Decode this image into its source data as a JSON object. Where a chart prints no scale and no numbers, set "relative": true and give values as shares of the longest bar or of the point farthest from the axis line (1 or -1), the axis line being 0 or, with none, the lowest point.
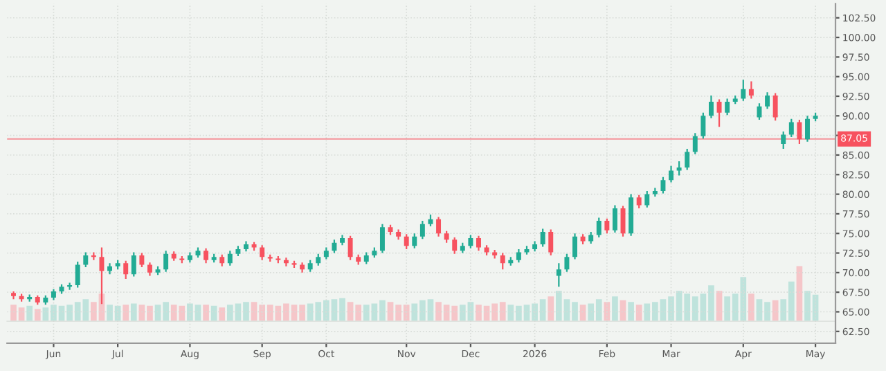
{
  "chart_data": [
    {
      "type": "candlestick",
      "categories": [
        null,
        null,
        null,
        null,
        null,
        "Jun",
        null,
        null,
        null,
        null,
        null,
        null,
        null,
        "Jul",
        null,
        null,
        null,
        null,
        null,
        null,
        null,
        null,
        "Aug",
        null,
        null,
        null,
        null,
        null,
        null,
        null,
        null,
        "Sep",
        null,
        null,
        null,
        null,
        null,
        null,
        null,
        "Oct",
        null,
        null,
        null,
        null,
        null,
        null,
        null,
        null,
        null,
        "Nov",
        null,
        null,
        null,
        null,
        null,
        null,
        null,
        "Dec",
        null,
        null,
        null,
        null,
        null,
        null,
        null,
        "2026",
        null,
        null,
        null,
        null,
        null,
        null,
        null,
        null,
        "Feb",
        null,
        null,
        null,
        null,
        null,
        null,
        null,
        "Mar",
        null,
        null,
        null,
        null,
        null,
        null,
        null,
        null,
        "Apr",
        null,
        null,
        null,
        null,
        null,
        null,
        null,
        null,
        "May"
      ],
      "ohlc": [
        [
          67.4,
          67.6,
          66.6,
          67.0
        ],
        [
          67.0,
          67.3,
          66.3,
          66.6
        ],
        [
          66.6,
          67.2,
          66.3,
          66.9
        ],
        [
          66.9,
          67.1,
          65.9,
          66.2
        ],
        [
          66.2,
          67.1,
          65.9,
          66.8
        ],
        [
          66.8,
          67.9,
          66.5,
          67.6
        ],
        [
          67.6,
          68.5,
          67.3,
          68.2
        ],
        [
          68.2,
          68.7,
          67.8,
          68.4
        ],
        [
          68.4,
          71.4,
          68.1,
          71.0
        ],
        [
          71.0,
          72.6,
          70.7,
          72.2
        ],
        [
          72.2,
          72.6,
          71.6,
          72.0
        ],
        [
          72.0,
          73.2,
          66.0,
          70.2
        ],
        [
          70.2,
          71.2,
          69.8,
          70.8
        ],
        [
          70.8,
          71.6,
          70.4,
          71.2
        ],
        [
          71.2,
          71.5,
          69.2,
          69.8
        ],
        [
          69.8,
          72.6,
          69.5,
          72.2
        ],
        [
          72.2,
          72.5,
          70.7,
          71.0
        ],
        [
          71.0,
          71.3,
          69.6,
          70.0
        ],
        [
          70.0,
          70.8,
          69.7,
          70.4
        ],
        [
          70.4,
          72.8,
          70.1,
          72.4
        ],
        [
          72.4,
          72.7,
          71.5,
          71.8
        ],
        [
          71.8,
          72.1,
          71.2,
          71.6
        ],
        [
          71.6,
          72.6,
          71.3,
          72.2
        ],
        [
          72.2,
          73.2,
          71.9,
          72.8
        ],
        [
          72.8,
          73.1,
          71.2,
          71.6
        ],
        [
          71.6,
          72.4,
          71.3,
          72.0
        ],
        [
          72.0,
          72.3,
          70.8,
          71.2
        ],
        [
          71.2,
          72.8,
          70.9,
          72.4
        ],
        [
          72.4,
          73.4,
          72.1,
          73.0
        ],
        [
          73.0,
          74.0,
          72.7,
          73.6
        ],
        [
          73.6,
          73.9,
          72.8,
          73.2
        ],
        [
          73.2,
          73.5,
          71.6,
          72.0
        ],
        [
          72.0,
          72.3,
          71.4,
          71.8
        ],
        [
          71.8,
          72.1,
          71.2,
          71.6
        ],
        [
          71.6,
          71.9,
          70.8,
          71.2
        ],
        [
          71.2,
          71.5,
          70.6,
          71.0
        ],
        [
          71.0,
          71.3,
          70.0,
          70.4
        ],
        [
          70.4,
          71.6,
          70.1,
          71.2
        ],
        [
          71.2,
          72.4,
          70.9,
          72.0
        ],
        [
          72.0,
          73.2,
          71.7,
          72.8
        ],
        [
          72.8,
          74.2,
          72.5,
          73.8
        ],
        [
          73.8,
          74.8,
          73.5,
          74.4
        ],
        [
          74.4,
          74.7,
          71.6,
          72.0
        ],
        [
          72.0,
          72.3,
          71.0,
          71.4
        ],
        [
          71.4,
          72.6,
          71.1,
          72.2
        ],
        [
          72.2,
          73.2,
          71.9,
          72.8
        ],
        [
          72.8,
          76.2,
          72.5,
          75.8
        ],
        [
          75.8,
          76.1,
          74.8,
          75.2
        ],
        [
          75.2,
          75.5,
          74.2,
          74.6
        ],
        [
          74.6,
          74.9,
          73.0,
          73.4
        ],
        [
          73.4,
          75.0,
          73.1,
          74.6
        ],
        [
          74.6,
          76.6,
          74.3,
          76.2
        ],
        [
          76.2,
          77.4,
          75.9,
          76.8
        ],
        [
          76.8,
          77.1,
          74.6,
          75.0
        ],
        [
          75.0,
          75.3,
          73.8,
          74.2
        ],
        [
          74.2,
          74.5,
          72.4,
          72.8
        ],
        [
          72.8,
          73.8,
          72.5,
          73.4
        ],
        [
          73.4,
          74.8,
          73.1,
          74.4
        ],
        [
          74.4,
          74.7,
          72.8,
          73.2
        ],
        [
          73.2,
          73.5,
          72.2,
          72.6
        ],
        [
          72.6,
          72.9,
          71.8,
          72.2
        ],
        [
          72.2,
          72.5,
          70.4,
          71.2
        ],
        [
          71.2,
          72.0,
          70.9,
          71.6
        ],
        [
          71.6,
          73.0,
          71.3,
          72.6
        ],
        [
          72.6,
          73.4,
          72.3,
          73.0
        ],
        [
          73.0,
          74.0,
          72.7,
          73.6
        ],
        [
          73.6,
          75.6,
          73.3,
          75.2
        ],
        [
          75.2,
          75.5,
          72.2,
          72.6
        ],
        [
          69.6,
          71.2,
          68.2,
          70.4
        ],
        [
          70.4,
          72.4,
          70.1,
          72.0
        ],
        [
          72.0,
          75.0,
          71.7,
          74.6
        ],
        [
          74.6,
          74.9,
          73.6,
          74.0
        ],
        [
          74.0,
          75.2,
          73.7,
          74.8
        ],
        [
          74.8,
          77.0,
          74.5,
          76.6
        ],
        [
          76.6,
          76.9,
          75.0,
          75.4
        ],
        [
          75.4,
          78.6,
          75.1,
          78.2
        ],
        [
          78.2,
          78.5,
          74.6,
          75.0
        ],
        [
          75.0,
          80.0,
          74.7,
          79.6
        ],
        [
          79.6,
          79.9,
          78.2,
          78.6
        ],
        [
          78.6,
          80.4,
          78.3,
          80.0
        ],
        [
          80.0,
          80.8,
          79.7,
          80.4
        ],
        [
          80.4,
          82.2,
          80.1,
          81.8
        ],
        [
          81.8,
          83.6,
          81.5,
          83.0
        ],
        [
          83.0,
          84.2,
          82.4,
          83.4
        ],
        [
          83.4,
          85.8,
          83.1,
          85.4
        ],
        [
          85.4,
          87.8,
          85.1,
          87.4
        ],
        [
          87.4,
          90.4,
          87.1,
          90.0
        ],
        [
          90.0,
          92.6,
          89.7,
          91.8
        ],
        [
          91.8,
          92.1,
          88.6,
          90.4
        ],
        [
          90.4,
          92.2,
          90.1,
          91.8
        ],
        [
          91.8,
          92.6,
          91.5,
          92.2
        ],
        [
          92.2,
          94.6,
          91.9,
          93.4
        ],
        [
          93.4,
          94.4,
          92.2,
          92.6
        ],
        [
          89.8,
          91.6,
          89.5,
          91.2
        ],
        [
          91.2,
          93.0,
          90.9,
          92.6
        ],
        [
          92.6,
          92.9,
          89.4,
          89.8
        ],
        [
          86.4,
          88.0,
          85.8,
          87.6
        ],
        [
          87.6,
          89.6,
          87.3,
          89.2
        ],
        [
          89.2,
          89.5,
          86.4,
          87.0
        ],
        [
          87.0,
          90.0,
          86.7,
          89.6
        ],
        [
          89.6,
          90.4,
          89.3,
          90.0
        ]
      ],
      "colors": [
        "#f7525f",
        "#f7525f",
        "#22ab94",
        "#f7525f",
        "#22ab94",
        "#22ab94",
        "#22ab94",
        "#22ab94",
        "#22ab94",
        "#22ab94",
        "#f7525f",
        "#f7525f",
        "#22ab94",
        "#22ab94",
        "#f7525f",
        "#22ab94",
        "#f7525f",
        "#f7525f",
        "#22ab94",
        "#22ab94",
        "#f7525f",
        "#f7525f",
        "#22ab94",
        "#22ab94",
        "#f7525f",
        "#22ab94",
        "#f7525f",
        "#22ab94",
        "#22ab94",
        "#22ab94",
        "#f7525f",
        "#f7525f",
        "#f7525f",
        "#f7525f",
        "#f7525f",
        "#f7525f",
        "#f7525f",
        "#22ab94",
        "#22ab94",
        "#22ab94",
        "#22ab94",
        "#22ab94",
        "#f7525f",
        "#f7525f",
        "#22ab94",
        "#22ab94",
        "#22ab94",
        "#f7525f",
        "#f7525f",
        "#f7525f",
        "#22ab94",
        "#22ab94",
        "#22ab94",
        "#f7525f",
        "#f7525f",
        "#f7525f",
        "#22ab94",
        "#22ab94",
        "#f7525f",
        "#f7525f",
        "#f7525f",
        "#f7525f",
        "#22ab94",
        "#22ab94",
        "#22ab94",
        "#22ab94",
        "#22ab94",
        "#f7525f",
        "#22ab94",
        "#22ab94",
        "#22ab94",
        "#f7525f",
        "#22ab94",
        "#22ab94",
        "#f7525f",
        "#22ab94",
        "#f7525f",
        "#22ab94",
        "#f7525f",
        "#22ab94",
        "#22ab94",
        "#22ab94",
        "#22ab94",
        "#22ab94",
        "#22ab94",
        "#22ab94",
        "#22ab94",
        "#22ab94",
        "#f7525f",
        "#22ab94",
        "#22ab94",
        "#22ab94",
        "#f7525f",
        "#22ab94",
        "#22ab94",
        "#f7525f",
        "#22ab94",
        "#22ab94",
        "#f7525f",
        "#22ab94",
        "#22ab94"
      ],
      "ylim": [
        61.0,
        104.3
      ],
      "yticks": [
        {
          "value": 62.5,
          "label": "62.50"
        },
        {
          "value": 65,
          "label": "65.00"
        },
        {
          "value": 67.5,
          "label": "67.50"
        },
        {
          "value": 70,
          "label": "70.00"
        },
        {
          "value": 72.5,
          "label": "72.50"
        },
        {
          "value": 75,
          "label": "75.00"
        },
        {
          "value": 77.5,
          "label": "77.50"
        },
        {
          "value": 80,
          "label": "80.00"
        },
        {
          "value": 82.5,
          "label": "82.50"
        },
        {
          "value": 85,
          "label": "85.00"
        },
        {
          "value": 87.5,
          "label": null
        },
        {
          "value": 90,
          "label": "90.00"
        },
        {
          "value": 92.5,
          "label": "92.50"
        },
        {
          "value": 95,
          "label": "95.00"
        },
        {
          "value": 97.5,
          "label": "97.50"
        },
        {
          "value": 100,
          "label": "100.00"
        },
        {
          "value": 102.5,
          "label": "102.50"
        }
      ],
      "ref_lines": [
        {
          "axis": "y",
          "value": 87.05,
          "label": "87.05",
          "color": "#f7525f"
        }
      ],
      "grid": true
    },
    {
      "type": "bar",
      "relative": true,
      "categories": [
        null,
        null,
        null,
        null,
        null,
        null,
        null,
        null,
        null,
        null,
        null,
        null,
        null,
        null,
        null,
        null,
        null,
        null,
        null,
        null,
        null,
        null,
        null,
        null,
        null,
        null,
        null,
        null,
        null,
        null,
        null,
        null,
        null,
        null,
        null,
        null,
        null,
        null,
        null,
        null,
        null,
        null,
        null,
        null,
        null,
        null,
        null,
        null,
        null,
        null,
        null,
        null,
        null,
        null,
        null,
        null,
        null,
        null,
        null,
        null,
        null,
        null,
        null,
        null,
        null,
        null,
        null,
        null,
        null,
        null,
        null,
        null,
        null,
        null,
        null,
        null,
        null,
        null,
        null,
        null,
        null,
        null,
        null,
        null,
        null,
        null,
        null,
        null,
        null,
        null,
        null,
        null,
        null,
        null,
        null,
        null,
        null,
        null,
        null,
        null,
        null
      ],
      "colors": [
        "#f5c6c9",
        "#f5c6c9",
        "#bfe3dc",
        "#f5c6c9",
        "#bfe3dc",
        "#bfe3dc",
        "#bfe3dc",
        "#bfe3dc",
        "#bfe3dc",
        "#bfe3dc",
        "#f5c6c9",
        "#f5c6c9",
        "#bfe3dc",
        "#bfe3dc",
        "#f5c6c9",
        "#bfe3dc",
        "#f5c6c9",
        "#f5c6c9",
        "#bfe3dc",
        "#bfe3dc",
        "#f5c6c9",
        "#f5c6c9",
        "#bfe3dc",
        "#bfe3dc",
        "#f5c6c9",
        "#bfe3dc",
        "#f5c6c9",
        "#bfe3dc",
        "#bfe3dc",
        "#bfe3dc",
        "#f5c6c9",
        "#f5c6c9",
        "#f5c6c9",
        "#f5c6c9",
        "#f5c6c9",
        "#f5c6c9",
        "#f5c6c9",
        "#bfe3dc",
        "#bfe3dc",
        "#bfe3dc",
        "#bfe3dc",
        "#bfe3dc",
        "#f5c6c9",
        "#f5c6c9",
        "#bfe3dc",
        "#bfe3dc",
        "#bfe3dc",
        "#f5c6c9",
        "#f5c6c9",
        "#f5c6c9",
        "#bfe3dc",
        "#bfe3dc",
        "#bfe3dc",
        "#f5c6c9",
        "#f5c6c9",
        "#f5c6c9",
        "#bfe3dc",
        "#bfe3dc",
        "#f5c6c9",
        "#f5c6c9",
        "#f5c6c9",
        "#f5c6c9",
        "#bfe3dc",
        "#bfe3dc",
        "#bfe3dc",
        "#bfe3dc",
        "#bfe3dc",
        "#f5c6c9",
        "#bfe3dc",
        "#bfe3dc",
        "#bfe3dc",
        "#f5c6c9",
        "#bfe3dc",
        "#bfe3dc",
        "#f5c6c9",
        "#bfe3dc",
        "#f5c6c9",
        "#bfe3dc",
        "#f5c6c9",
        "#bfe3dc",
        "#bfe3dc",
        "#bfe3dc",
        "#bfe3dc",
        "#bfe3dc",
        "#bfe3dc",
        "#bfe3dc",
        "#bfe3dc",
        "#bfe3dc",
        "#f5c6c9",
        "#bfe3dc",
        "#bfe3dc",
        "#bfe3dc",
        "#f5c6c9",
        "#bfe3dc",
        "#bfe3dc",
        "#f5c6c9",
        "#bfe3dc",
        "#bfe3dc",
        "#f5c6c9",
        "#bfe3dc",
        "#bfe3dc"
      ],
      "values": [
        0.3,
        0.25,
        0.28,
        0.22,
        0.25,
        0.3,
        0.28,
        0.3,
        0.35,
        0.4,
        0.35,
        0.5,
        0.3,
        0.28,
        0.3,
        0.32,
        0.3,
        0.28,
        0.3,
        0.35,
        0.3,
        0.28,
        0.32,
        0.3,
        0.3,
        0.28,
        0.25,
        0.3,
        0.32,
        0.35,
        0.35,
        0.3,
        0.3,
        0.28,
        0.32,
        0.3,
        0.3,
        0.32,
        0.35,
        0.38,
        0.4,
        0.42,
        0.35,
        0.3,
        0.3,
        0.32,
        0.38,
        0.35,
        0.3,
        0.3,
        0.32,
        0.38,
        0.4,
        0.35,
        0.3,
        0.28,
        0.3,
        0.35,
        0.3,
        0.28,
        0.32,
        0.35,
        0.3,
        0.28,
        0.3,
        0.32,
        0.4,
        0.45,
        0.55,
        0.4,
        0.35,
        0.3,
        0.32,
        0.4,
        0.35,
        0.45,
        0.38,
        0.35,
        0.3,
        0.32,
        0.35,
        0.4,
        0.45,
        0.55,
        0.5,
        0.45,
        0.5,
        0.65,
        0.55,
        0.45,
        0.5,
        0.8,
        0.5,
        0.4,
        0.35,
        0.38,
        0.4,
        0.72,
        1.0,
        0.55,
        0.48
      ]
    }
  ]
}
